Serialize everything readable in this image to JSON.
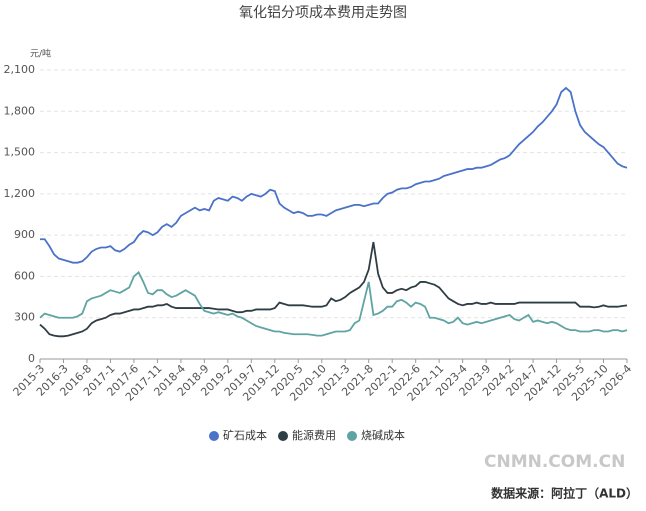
{
  "chart_data": {
    "type": "line",
    "title": "氧化铝分项成本费用走势图",
    "y_label": "元/吨",
    "categories": [
      "2015-3",
      null,
      null,
      null,
      null,
      "2016-3",
      null,
      null,
      null,
      null,
      "2016-8",
      null,
      null,
      null,
      null,
      "2017-1",
      null,
      null,
      null,
      null,
      "2017-6",
      null,
      null,
      null,
      null,
      "2017-11",
      null,
      null,
      null,
      null,
      "2018-4",
      null,
      null,
      null,
      null,
      "2018-9",
      null,
      null,
      null,
      null,
      "2019-2",
      null,
      null,
      null,
      null,
      "2019-7",
      null,
      null,
      null,
      null,
      "2019-12",
      null,
      null,
      null,
      null,
      "2020-5",
      null,
      null,
      null,
      null,
      "2020-10",
      null,
      null,
      null,
      null,
      "2021-3",
      null,
      null,
      null,
      null,
      "2021-8",
      null,
      null,
      null,
      null,
      "2022-1",
      null,
      null,
      null,
      null,
      "2022-6",
      null,
      null,
      null,
      null,
      "2022-11",
      null,
      null,
      null,
      null,
      "2023-4",
      null,
      null,
      null,
      null,
      "2023-9",
      null,
      null,
      null,
      null,
      "2024-2",
      null,
      null,
      null,
      null,
      "2024-7",
      null,
      null,
      null,
      null,
      "2024-12",
      null,
      null,
      null,
      null,
      "2025-5",
      null,
      null,
      null,
      null,
      "2025-10",
      null,
      null,
      null,
      null,
      "2026-4"
    ],
    "series": [
      {
        "name": "矿石成本",
        "color": "#4a72c9",
        "values": [
          870,
          870,
          820,
          760,
          730,
          720,
          710,
          700,
          700,
          710,
          740,
          780,
          800,
          810,
          810,
          820,
          790,
          780,
          800,
          830,
          850,
          900,
          930,
          920,
          900,
          920,
          960,
          980,
          960,
          990,
          1040,
          1060,
          1080,
          1100,
          1080,
          1090,
          1080,
          1150,
          1170,
          1160,
          1150,
          1180,
          1170,
          1150,
          1180,
          1200,
          1190,
          1180,
          1200,
          1230,
          1220,
          1130,
          1100,
          1080,
          1060,
          1070,
          1060,
          1040,
          1040,
          1050,
          1050,
          1040,
          1060,
          1080,
          1090,
          1100,
          1110,
          1120,
          1120,
          1110,
          1120,
          1130,
          1130,
          1170,
          1200,
          1210,
          1230,
          1240,
          1240,
          1250,
          1270,
          1280,
          1290,
          1290,
          1300,
          1310,
          1330,
          1340,
          1350,
          1360,
          1370,
          1380,
          1380,
          1390,
          1390,
          1400,
          1410,
          1430,
          1450,
          1460,
          1480,
          1520,
          1560,
          1590,
          1620,
          1650,
          1690,
          1720,
          1760,
          1800,
          1850,
          1940,
          1970,
          1940,
          1800,
          1700,
          1650,
          1620,
          1590,
          1560,
          1540,
          1500,
          1460,
          1420,
          1400,
          1390
        ]
      },
      {
        "name": "能源费用",
        "color": "#2f3d45",
        "values": [
          250,
          220,
          180,
          170,
          165,
          165,
          170,
          180,
          190,
          200,
          220,
          260,
          280,
          290,
          300,
          320,
          330,
          330,
          340,
          350,
          360,
          360,
          370,
          380,
          380,
          390,
          390,
          400,
          380,
          370,
          370,
          370,
          370,
          370,
          370,
          370,
          370,
          365,
          360,
          360,
          360,
          350,
          340,
          340,
          350,
          350,
          360,
          360,
          360,
          360,
          370,
          410,
          400,
          390,
          390,
          390,
          390,
          385,
          380,
          380,
          380,
          390,
          440,
          420,
          430,
          450,
          480,
          500,
          520,
          560,
          650,
          850,
          620,
          520,
          480,
          480,
          500,
          510,
          500,
          520,
          530,
          560,
          560,
          550,
          540,
          520,
          480,
          440,
          420,
          400,
          390,
          400,
          400,
          410,
          400,
          400,
          410,
          400,
          400,
          400,
          400,
          400,
          410,
          410,
          410,
          410,
          410,
          410,
          410,
          410,
          410,
          410,
          410,
          410,
          410,
          380,
          380,
          380,
          375,
          380,
          390,
          380,
          380,
          380,
          385,
          390
        ]
      },
      {
        "name": "烧碱成本",
        "color": "#5fa3a3",
        "values": [
          300,
          330,
          320,
          310,
          300,
          300,
          300,
          300,
          310,
          330,
          420,
          440,
          450,
          460,
          480,
          500,
          490,
          480,
          500,
          520,
          600,
          630,
          560,
          480,
          470,
          500,
          500,
          470,
          450,
          460,
          480,
          500,
          480,
          460,
          400,
          350,
          340,
          330,
          340,
          330,
          320,
          330,
          310,
          300,
          280,
          260,
          240,
          230,
          220,
          210,
          200,
          200,
          190,
          185,
          180,
          180,
          180,
          180,
          175,
          170,
          170,
          180,
          190,
          200,
          200,
          200,
          210,
          260,
          280,
          420,
          560,
          320,
          330,
          350,
          380,
          380,
          420,
          430,
          410,
          380,
          410,
          400,
          380,
          300,
          300,
          290,
          280,
          260,
          270,
          300,
          260,
          250,
          260,
          270,
          260,
          270,
          280,
          290,
          300,
          310,
          320,
          290,
          280,
          300,
          320,
          270,
          280,
          270,
          260,
          270,
          260,
          240,
          220,
          210,
          210,
          200,
          200,
          200,
          210,
          210,
          200,
          200,
          210,
          210,
          200,
          210
        ]
      }
    ],
    "ylim": [
      0,
      2100
    ],
    "yticks": [
      0,
      300,
      600,
      900,
      {
        "value": 1200,
        "label": "1,200"
      },
      {
        "value": 1500,
        "label": "1,500"
      },
      {
        "value": 1800,
        "label": "1,800"
      },
      {
        "value": 2100,
        "label": "2,100"
      }
    ],
    "grid": true,
    "legend": "bottom",
    "site": "CNMN.COM.CN",
    "source": "数据来源：阿拉丁（ALD）"
  }
}
